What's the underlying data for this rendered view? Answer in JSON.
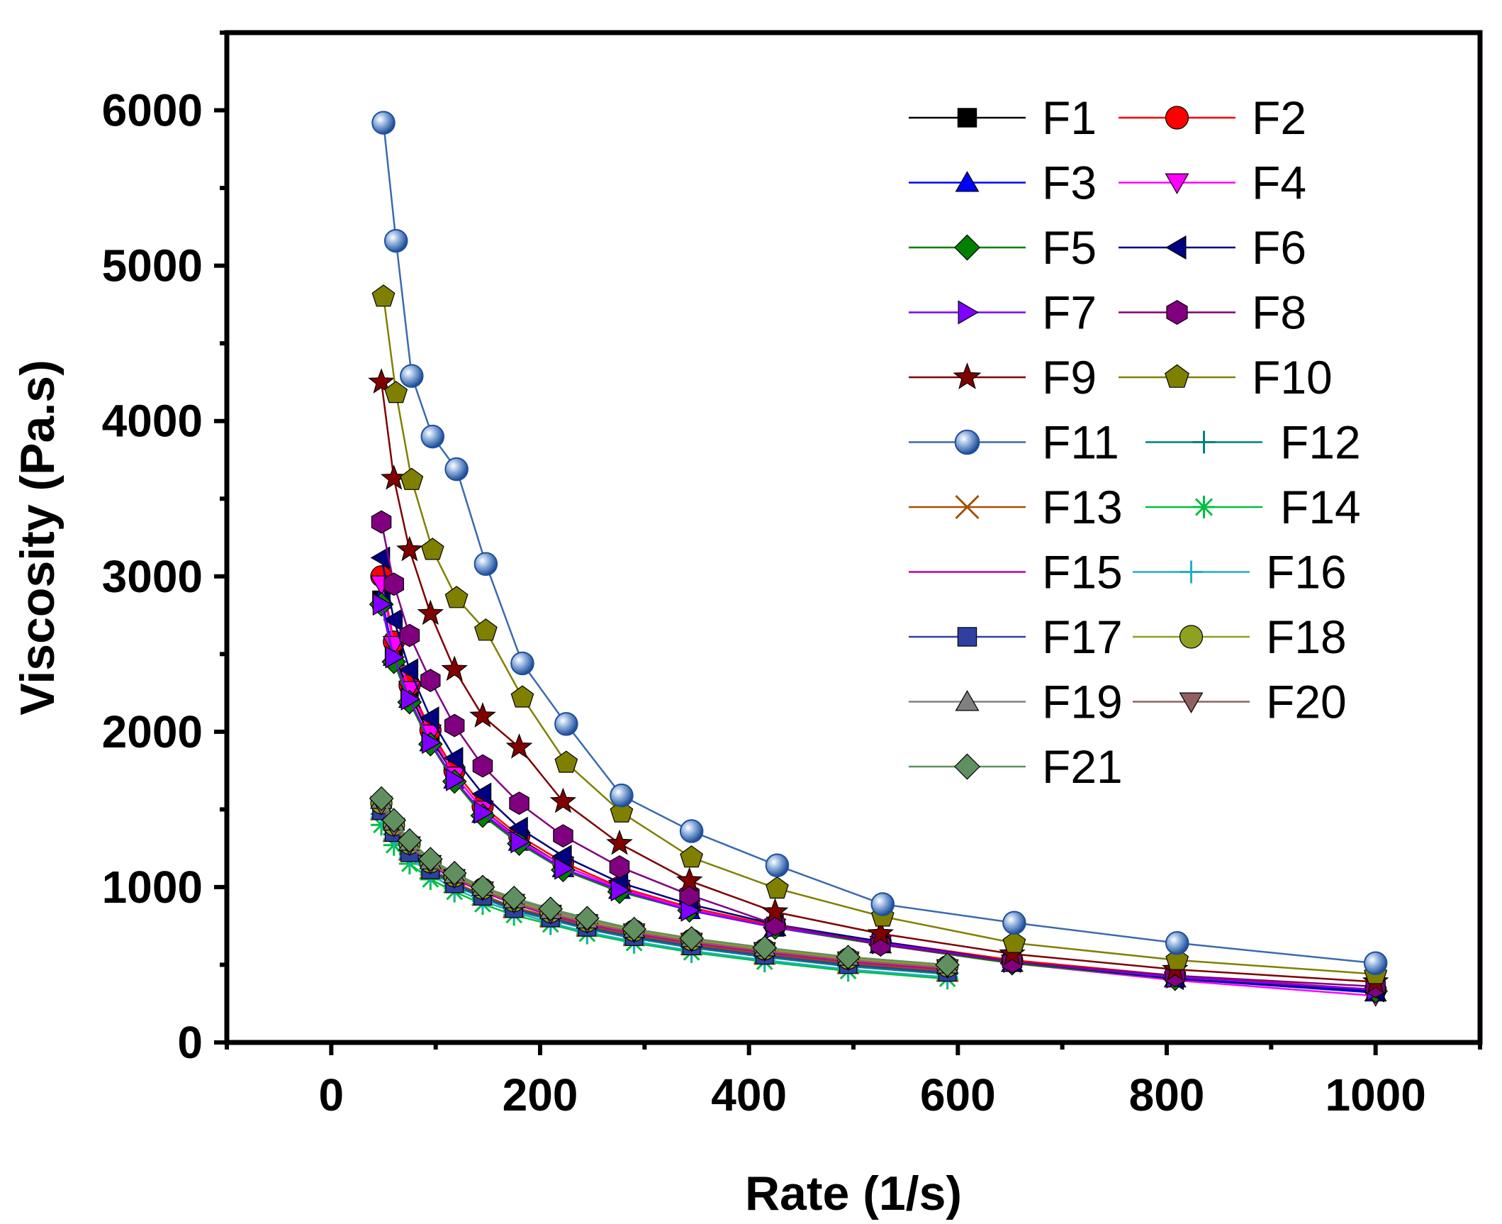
{
  "chart_data": {
    "type": "line",
    "title": "",
    "xlabel": "Rate (1/s)",
    "ylabel": "Viscosity (Pa.s)",
    "xlim": [
      -100,
      1100
    ],
    "ylim": [
      0,
      6500
    ],
    "xticks": [
      0,
      200,
      400,
      600,
      800,
      1000
    ],
    "yticks": [
      0,
      1000,
      2000,
      3000,
      4000,
      5000,
      6000
    ],
    "legend_position": "top-right",
    "series": [
      {
        "name": "F1",
        "color": "#000000",
        "marker": "square",
        "x": [
          48,
          60,
          75,
          95,
          118,
          145,
          180,
          222,
          276,
          343,
          425,
          526,
          652,
          808,
          1000
        ],
        "y": [
          2850,
          2500,
          2250,
          1960,
          1720,
          1500,
          1310,
          1140,
          990,
          860,
          740,
          640,
          520,
          420,
          340
        ]
      },
      {
        "name": "F2",
        "color": "#ff0000",
        "marker": "circle",
        "x": [
          48,
          60,
          75,
          95,
          118,
          145,
          180,
          222,
          276,
          343,
          425,
          526,
          652,
          808,
          1000
        ],
        "y": [
          3000,
          2580,
          2300,
          2010,
          1750,
          1520,
          1330,
          1160,
          1000,
          870,
          750,
          650,
          530,
          430,
          340
        ]
      },
      {
        "name": "F3",
        "color": "#0000ff",
        "marker": "triangle-up",
        "x": [
          48,
          60,
          75,
          95,
          118,
          145,
          180,
          222,
          276,
          343,
          425,
          526,
          652,
          808,
          1000
        ],
        "y": [
          2870,
          2480,
          2210,
          1930,
          1690,
          1470,
          1290,
          1120,
          980,
          850,
          740,
          630,
          510,
          410,
          320
        ]
      },
      {
        "name": "F4",
        "color": "#ff00ff",
        "marker": "triangle-down",
        "x": [
          48,
          60,
          75,
          95,
          118,
          145,
          180,
          222,
          276,
          343,
          425,
          526,
          652,
          808,
          1000
        ],
        "y": [
          2950,
          2560,
          2270,
          1990,
          1720,
          1500,
          1300,
          1140,
          990,
          860,
          740,
          630,
          510,
          400,
          300
        ]
      },
      {
        "name": "F5",
        "color": "#008000",
        "marker": "diamond",
        "x": [
          48,
          60,
          75,
          95,
          118,
          145,
          180,
          222,
          276,
          343,
          425,
          526,
          652,
          808,
          1000
        ],
        "y": [
          2820,
          2450,
          2190,
          1920,
          1680,
          1460,
          1280,
          1110,
          970,
          850,
          740,
          630,
          510,
          410,
          330
        ]
      },
      {
        "name": "F6",
        "color": "#000080",
        "marker": "triangle-left",
        "x": [
          48,
          60,
          75,
          95,
          118,
          145,
          180,
          222,
          276,
          343,
          425,
          526,
          652,
          808,
          1000
        ],
        "y": [
          3120,
          2720,
          2400,
          2090,
          1830,
          1600,
          1380,
          1200,
          1030,
          890,
          760,
          650,
          520,
          410,
          330
        ]
      },
      {
        "name": "F7",
        "color": "#8000ff",
        "marker": "triangle-right",
        "x": [
          48,
          60,
          75,
          95,
          118,
          145,
          180,
          222,
          276,
          343,
          425,
          526,
          652,
          808,
          1000
        ],
        "y": [
          2820,
          2480,
          2210,
          1930,
          1690,
          1480,
          1290,
          1120,
          980,
          850,
          740,
          640,
          520,
          420,
          340
        ]
      },
      {
        "name": "F8",
        "color": "#800080",
        "marker": "hexagon",
        "x": [
          48,
          60,
          75,
          95,
          118,
          145,
          180,
          222,
          276,
          343,
          425,
          526,
          652,
          808,
          1000
        ],
        "y": [
          3350,
          2950,
          2620,
          2330,
          2040,
          1780,
          1540,
          1330,
          1130,
          950,
          760,
          630,
          520,
          430,
          360
        ]
      },
      {
        "name": "F9",
        "color": "#800000",
        "marker": "star",
        "x": [
          48,
          60,
          75,
          95,
          118,
          145,
          180,
          222,
          276,
          343,
          425,
          526,
          652,
          808,
          1000
        ],
        "y": [
          4250,
          3630,
          3170,
          2760,
          2400,
          2100,
          1900,
          1550,
          1280,
          1040,
          840,
          700,
          570,
          470,
          390
        ]
      },
      {
        "name": "F10",
        "color": "#808000",
        "marker": "pentagon",
        "x": [
          50,
          62,
          77,
          97,
          120,
          148,
          183,
          225,
          278,
          345,
          427,
          528,
          654,
          810,
          1000
        ],
        "y": [
          4800,
          4180,
          3620,
          3170,
          2860,
          2650,
          2220,
          1800,
          1480,
          1190,
          990,
          810,
          640,
          530,
          440
        ]
      },
      {
        "name": "F11",
        "color": "#3a6ab0",
        "marker": "ball",
        "x": [
          50,
          62,
          77,
          97,
          120,
          148,
          183,
          225,
          278,
          345,
          427,
          528,
          654,
          810,
          1000
        ],
        "y": [
          5920,
          5160,
          4290,
          3900,
          3690,
          3080,
          2440,
          2050,
          1590,
          1360,
          1140,
          890,
          770,
          640,
          510
        ]
      },
      {
        "name": "F12",
        "color": "#008080",
        "marker": "plus",
        "x": [
          48,
          60,
          75,
          95,
          118,
          145,
          175,
          210,
          245,
          290,
          345,
          415,
          495,
          590
        ],
        "y": [
          1470,
          1340,
          1210,
          1100,
          1010,
          930,
          850,
          790,
          730,
          670,
          610,
          550,
          490,
          440
        ]
      },
      {
        "name": "F13",
        "color": "#a05000",
        "marker": "x",
        "x": [
          48,
          60,
          75,
          95,
          118,
          145,
          175,
          210,
          245,
          290,
          345,
          415,
          495,
          590
        ],
        "y": [
          1500,
          1360,
          1240,
          1120,
          1030,
          950,
          870,
          810,
          750,
          690,
          630,
          570,
          510,
          460
        ]
      },
      {
        "name": "F14",
        "color": "#00c040",
        "marker": "asterisk",
        "x": [
          48,
          60,
          75,
          95,
          118,
          145,
          175,
          210,
          245,
          290,
          345,
          415,
          495,
          590
        ],
        "y": [
          1400,
          1270,
          1150,
          1050,
          970,
          890,
          820,
          760,
          700,
          640,
          580,
          520,
          460,
          410
        ]
      },
      {
        "name": "F15",
        "color": "#c000a0",
        "marker": "none",
        "x": [
          48,
          60,
          75,
          95,
          118,
          145,
          175,
          210,
          245,
          290,
          345,
          415,
          495,
          590
        ],
        "y": [
          1520,
          1380,
          1260,
          1140,
          1050,
          970,
          890,
          820,
          760,
          700,
          640,
          580,
          520,
          470
        ]
      },
      {
        "name": "F16",
        "color": "#20b0c0",
        "marker": "plus",
        "x": [
          48,
          60,
          75,
          95,
          118,
          145,
          175,
          210,
          245,
          290,
          345,
          415,
          495,
          590
        ],
        "y": [
          1450,
          1310,
          1190,
          1080,
          990,
          910,
          840,
          770,
          710,
          650,
          590,
          530,
          470,
          420
        ]
      },
      {
        "name": "F17",
        "color": "#3040a0",
        "marker": "square",
        "x": [
          48,
          60,
          75,
          95,
          118,
          145,
          175,
          210,
          245,
          290,
          345,
          415,
          495,
          590
        ],
        "y": [
          1490,
          1350,
          1220,
          1110,
          1020,
          940,
          860,
          800,
          740,
          680,
          620,
          560,
          500,
          450
        ]
      },
      {
        "name": "F18",
        "color": "#90a020",
        "marker": "circle",
        "x": [
          48,
          60,
          75,
          95,
          118,
          145,
          175,
          210,
          245,
          290,
          345,
          415,
          495,
          590
        ],
        "y": [
          1540,
          1400,
          1280,
          1160,
          1070,
          990,
          910,
          840,
          780,
          720,
          660,
          600,
          540,
          490
        ]
      },
      {
        "name": "F19",
        "color": "#808080",
        "marker": "triangle-up",
        "x": [
          48,
          60,
          75,
          95,
          118,
          145,
          175,
          210,
          245,
          290,
          345,
          415,
          495,
          590
        ],
        "y": [
          1560,
          1420,
          1290,
          1170,
          1080,
          1000,
          920,
          850,
          790,
          730,
          670,
          610,
          550,
          500
        ]
      },
      {
        "name": "F20",
        "color": "#906060",
        "marker": "triangle-down",
        "x": [
          48,
          60,
          75,
          95,
          118,
          145,
          175,
          210,
          245,
          290,
          345,
          415,
          495,
          590
        ],
        "y": [
          1530,
          1390,
          1270,
          1150,
          1060,
          980,
          900,
          830,
          770,
          710,
          650,
          590,
          530,
          480
        ]
      },
      {
        "name": "F21",
        "color": "#609060",
        "marker": "diamond",
        "x": [
          48,
          60,
          75,
          95,
          118,
          145,
          175,
          210,
          245,
          290,
          345,
          415,
          495,
          590
        ],
        "y": [
          1570,
          1430,
          1300,
          1180,
          1090,
          1000,
          930,
          860,
          800,
          730,
          670,
          610,
          550,
          500
        ]
      }
    ]
  }
}
